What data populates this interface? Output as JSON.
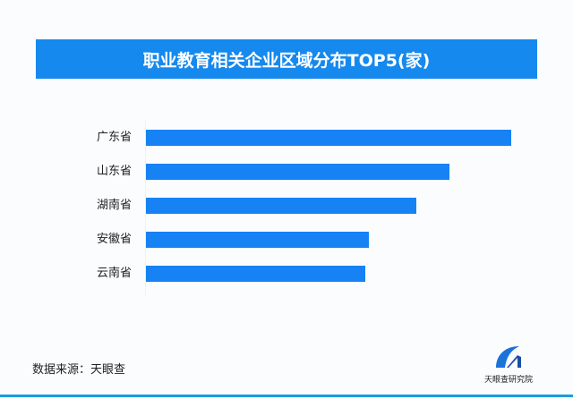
{
  "chart_data": {
    "type": "bar",
    "orientation": "horizontal",
    "title": "职业教育相关企业区域分布TOP5(家)",
    "categories": [
      "广东省",
      "山东省",
      "湖南省",
      "安徽省",
      "云南省"
    ],
    "values": [
      100,
      83,
      74,
      61,
      60
    ],
    "value_note_visible": false,
    "xlim": [
      0,
      100
    ],
    "grid": false,
    "bar_color": "#1682f4",
    "title_bg": "#1689ee"
  },
  "footer": {
    "source": "数据来源：天眼查",
    "logo_text": "天眼查研究院"
  }
}
